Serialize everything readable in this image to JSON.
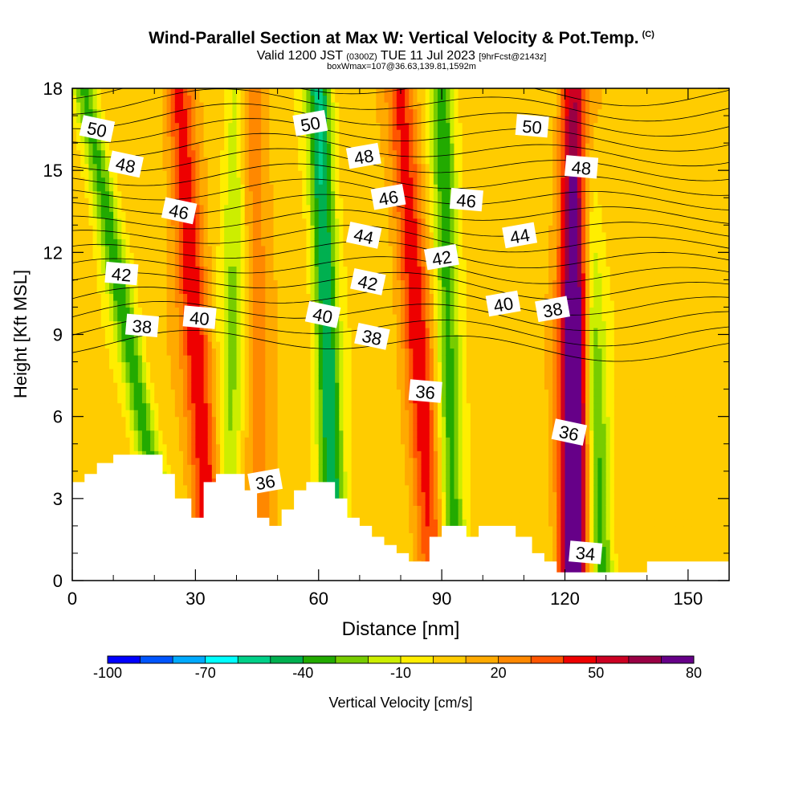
{
  "header": {
    "title": "Wind-Parallel Section at Max W: Vertical Velocity & Pot.Temp.",
    "title_tag": "(C)",
    "valid_prefix": "Valid 1200 JST",
    "valid_utc": "(0300Z)",
    "valid_date": "TUE 11 Jul 2023",
    "forecast": "[9hrFcst@2143z]",
    "boxwmax": "boxWmax=107@36.63,139.81,1592m"
  },
  "colorbar": {
    "label": "Vertical Velocity [cm/s]",
    "colors": [
      "#0000ff",
      "#0055ff",
      "#00aaff",
      "#00ffff",
      "#00d088",
      "#00b050",
      "#22aa00",
      "#77cc00",
      "#ccee00",
      "#ffee00",
      "#ffcc00",
      "#ffaa00",
      "#ff8800",
      "#ff5500",
      "#ee0000",
      "#cc0022",
      "#990044",
      "#660088"
    ],
    "tick_labels": [
      "-100",
      "-70",
      "-40",
      "-10",
      "20",
      "50",
      "80"
    ]
  },
  "chart_data": {
    "type": "heatmap",
    "xlabel": "Distance [nm]",
    "ylabel": "Height [Kft MSL]",
    "xlim": [
      0,
      160
    ],
    "ylim": [
      0,
      18
    ],
    "xticks": [
      0,
      30,
      60,
      90,
      120,
      150
    ],
    "yticks": [
      0,
      3,
      6,
      9,
      12,
      15,
      18
    ],
    "color_range": [
      -100,
      80
    ],
    "updraft_bands": [
      {
        "x_bottom": 34,
        "x_top": 26,
        "w": 42
      },
      {
        "x_bottom": 88,
        "x_top": 80,
        "w": 40
      },
      {
        "x_bottom": 122,
        "x_top": 123,
        "w": 90
      },
      {
        "x_bottom": 46,
        "x_top": 44,
        "w": 20
      }
    ],
    "downdraft_bands": [
      {
        "x_bottom": 24,
        "x_top": 3,
        "w": -40
      },
      {
        "x_bottom": 64,
        "x_top": 60,
        "w": -55
      },
      {
        "x_bottom": 93,
        "x_top": 90,
        "w": -40
      },
      {
        "x_bottom": 129,
        "x_top": 124,
        "w": -42
      },
      {
        "x_bottom": 38,
        "x_top": 40,
        "w": -25
      }
    ],
    "isentrope_labels": [
      {
        "text": "50",
        "x": 6,
        "y": 16.5
      },
      {
        "text": "50",
        "x": 58,
        "y": 16.7
      },
      {
        "text": "50",
        "x": 112,
        "y": 16.6
      },
      {
        "text": "48",
        "x": 13,
        "y": 15.2
      },
      {
        "text": "48",
        "x": 71,
        "y": 15.5
      },
      {
        "text": "48",
        "x": 124,
        "y": 15.1
      },
      {
        "text": "46",
        "x": 26,
        "y": 13.5
      },
      {
        "text": "46",
        "x": 77,
        "y": 14.0
      },
      {
        "text": "46",
        "x": 96,
        "y": 13.9
      },
      {
        "text": "44",
        "x": 71,
        "y": 12.6
      },
      {
        "text": "44",
        "x": 109,
        "y": 12.6
      },
      {
        "text": "42",
        "x": 12,
        "y": 11.2
      },
      {
        "text": "42",
        "x": 72,
        "y": 10.9
      },
      {
        "text": "42",
        "x": 90,
        "y": 11.8
      },
      {
        "text": "40",
        "x": 31,
        "y": 9.6
      },
      {
        "text": "40",
        "x": 61,
        "y": 9.7
      },
      {
        "text": "40",
        "x": 105,
        "y": 10.1
      },
      {
        "text": "38",
        "x": 17,
        "y": 9.3
      },
      {
        "text": "38",
        "x": 73,
        "y": 8.9
      },
      {
        "text": "38",
        "x": 117,
        "y": 9.9
      },
      {
        "text": "36",
        "x": 86,
        "y": 6.9
      },
      {
        "text": "36",
        "x": 121,
        "y": 5.4
      },
      {
        "text": "36",
        "x": 47,
        "y": 3.6
      },
      {
        "text": "34",
        "x": 125,
        "y": 1.0
      }
    ],
    "terrain": [
      [
        0,
        3.6
      ],
      [
        3,
        3.6
      ],
      [
        3,
        3.9
      ],
      [
        6,
        3.9
      ],
      [
        6,
        4.3
      ],
      [
        10,
        4.3
      ],
      [
        10,
        4.6
      ],
      [
        22,
        4.6
      ],
      [
        22,
        3.9
      ],
      [
        25,
        3.9
      ],
      [
        25,
        3.0
      ],
      [
        29,
        3.0
      ],
      [
        29,
        2.3
      ],
      [
        32,
        2.3
      ],
      [
        32,
        3.6
      ],
      [
        35,
        3.6
      ],
      [
        35,
        3.9
      ],
      [
        42,
        3.9
      ],
      [
        42,
        3.3
      ],
      [
        45,
        3.3
      ],
      [
        45,
        2.3
      ],
      [
        48,
        2.3
      ],
      [
        48,
        2.0
      ],
      [
        51,
        2.0
      ],
      [
        51,
        2.6
      ],
      [
        54,
        2.6
      ],
      [
        54,
        3.3
      ],
      [
        57,
        3.3
      ],
      [
        57,
        3.6
      ],
      [
        64,
        3.6
      ],
      [
        64,
        3.0
      ],
      [
        67,
        3.0
      ],
      [
        67,
        2.3
      ],
      [
        70,
        2.3
      ],
      [
        70,
        2.0
      ],
      [
        73,
        2.0
      ],
      [
        73,
        1.6
      ],
      [
        76,
        1.6
      ],
      [
        76,
        1.3
      ],
      [
        79,
        1.3
      ],
      [
        79,
        1.0
      ],
      [
        82,
        1.0
      ],
      [
        82,
        0.7
      ],
      [
        87,
        0.7
      ],
      [
        87,
        1.6
      ],
      [
        90,
        1.6
      ],
      [
        90,
        2.0
      ],
      [
        96,
        2.0
      ],
      [
        96,
        1.6
      ],
      [
        99,
        1.6
      ],
      [
        99,
        2.0
      ],
      [
        108,
        2.0
      ],
      [
        108,
        1.6
      ],
      [
        112,
        1.6
      ],
      [
        112,
        1.0
      ],
      [
        115,
        1.0
      ],
      [
        115,
        0.7
      ],
      [
        118,
        0.7
      ],
      [
        118,
        0.3
      ],
      [
        140,
        0.3
      ],
      [
        140,
        0.7
      ],
      [
        160,
        0.7
      ]
    ]
  }
}
